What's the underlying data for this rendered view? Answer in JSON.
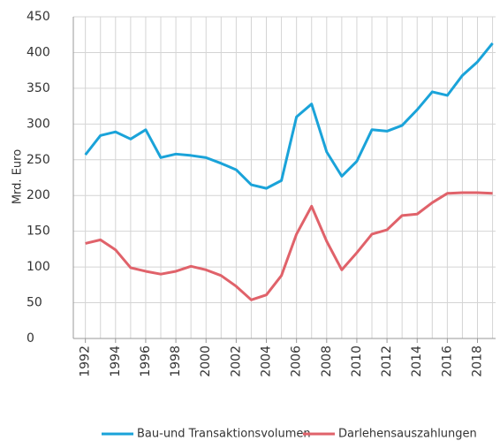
{
  "chart_data": {
    "type": "line",
    "ylabel": "Mrd. Euro",
    "x": [
      1992,
      1993,
      1994,
      1995,
      1996,
      1997,
      1998,
      1999,
      2000,
      2001,
      2002,
      2003,
      2004,
      2005,
      2006,
      2007,
      2008,
      2009,
      2010,
      2011,
      2012,
      2013,
      2014,
      2015,
      2016,
      2017,
      2018,
      2019
    ],
    "series": [
      {
        "name": "Bau-und Transaktionsvolumen",
        "color": "#1aa3d9",
        "values": [
          257,
          284,
          289,
          279,
          292,
          253,
          258,
          256,
          253,
          245,
          236,
          215,
          210,
          221,
          310,
          328,
          261,
          227,
          248,
          292,
          290,
          298,
          320,
          345,
          340,
          368,
          387,
          413
        ]
      },
      {
        "name": "Darlehensauszahlungen",
        "color": "#e0626a",
        "values": [
          133,
          138,
          124,
          99,
          94,
          90,
          94,
          101,
          96,
          88,
          73,
          54,
          61,
          88,
          146,
          185,
          136,
          96,
          120,
          146,
          152,
          172,
          174,
          190,
          203,
          204,
          204,
          203
        ]
      }
    ],
    "xlim": [
      1991.2,
      2019.2
    ],
    "xticks": [
      1992,
      1994,
      1996,
      1998,
      2000,
      2002,
      2004,
      2006,
      2008,
      2010,
      2012,
      2014,
      2016,
      2018
    ],
    "ylim": [
      0,
      450
    ],
    "yticks": [
      0,
      50,
      100,
      150,
      200,
      250,
      300,
      350,
      400,
      450
    ],
    "grid": true
  }
}
